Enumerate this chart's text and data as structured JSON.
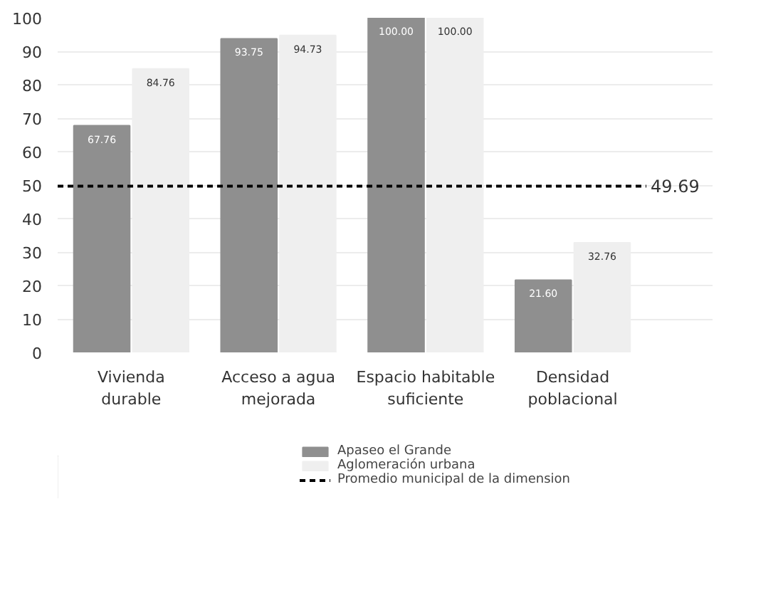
{
  "chart_data": {
    "type": "bar",
    "categories": [
      "Vivienda\ndurable",
      "Acceso a agua\nmejorada",
      "Espacio habitable\nsuficiente",
      "Densidad\npoblacional"
    ],
    "series": [
      {
        "name": "Apaseo el Grande",
        "color": "#8f8f8f",
        "values": [
          67.76,
          93.75,
          100.0,
          21.6
        ],
        "value_labels": [
          "67.76",
          "93.75",
          "100.00",
          "21.60"
        ]
      },
      {
        "name": "Aglomeración urbana",
        "color": "#efefef",
        "values": [
          84.76,
          94.73,
          100.0,
          32.76
        ],
        "value_labels": [
          "84.76",
          "94.73",
          "100.00",
          "32.76"
        ]
      }
    ],
    "ylim": [
      0,
      100
    ],
    "yticks": [
      0,
      10,
      20,
      30,
      40,
      50,
      60,
      70,
      80,
      90,
      100
    ],
    "grid": "y",
    "legend": "bottom",
    "ref_lines": [
      {
        "axis": "y",
        "value": 49.69,
        "label": "Promedio municipal de la dimension",
        "color": "#000000",
        "line_style": "dashed"
      }
    ],
    "annotations": [
      "49.69"
    ]
  }
}
